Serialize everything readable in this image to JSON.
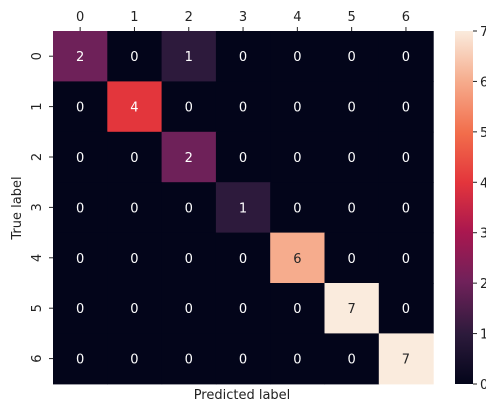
{
  "chart_data": {
    "type": "heatmap",
    "xlabel": "Predicted label",
    "ylabel": "True label",
    "x_categories": [
      "0",
      "1",
      "2",
      "3",
      "4",
      "5",
      "6"
    ],
    "y_categories": [
      "0",
      "1",
      "2",
      "3",
      "4",
      "5",
      "6"
    ],
    "x_ticks_position": "top",
    "values": [
      [
        2,
        0,
        1,
        0,
        0,
        0,
        0
      ],
      [
        0,
        4,
        0,
        0,
        0,
        0,
        0
      ],
      [
        0,
        0,
        2,
        0,
        0,
        0,
        0
      ],
      [
        0,
        0,
        0,
        1,
        0,
        0,
        0
      ],
      [
        0,
        0,
        0,
        0,
        6,
        0,
        0
      ],
      [
        0,
        0,
        0,
        0,
        0,
        7,
        0
      ],
      [
        0,
        0,
        0,
        0,
        0,
        0,
        7
      ]
    ],
    "vmin": 0,
    "vmax": 7,
    "colormap": "rocket",
    "colorbar": {
      "ticks": [
        "0",
        "1",
        "2",
        "3",
        "4",
        "5",
        "6",
        "7"
      ]
    },
    "grid": false,
    "legend": "right"
  }
}
